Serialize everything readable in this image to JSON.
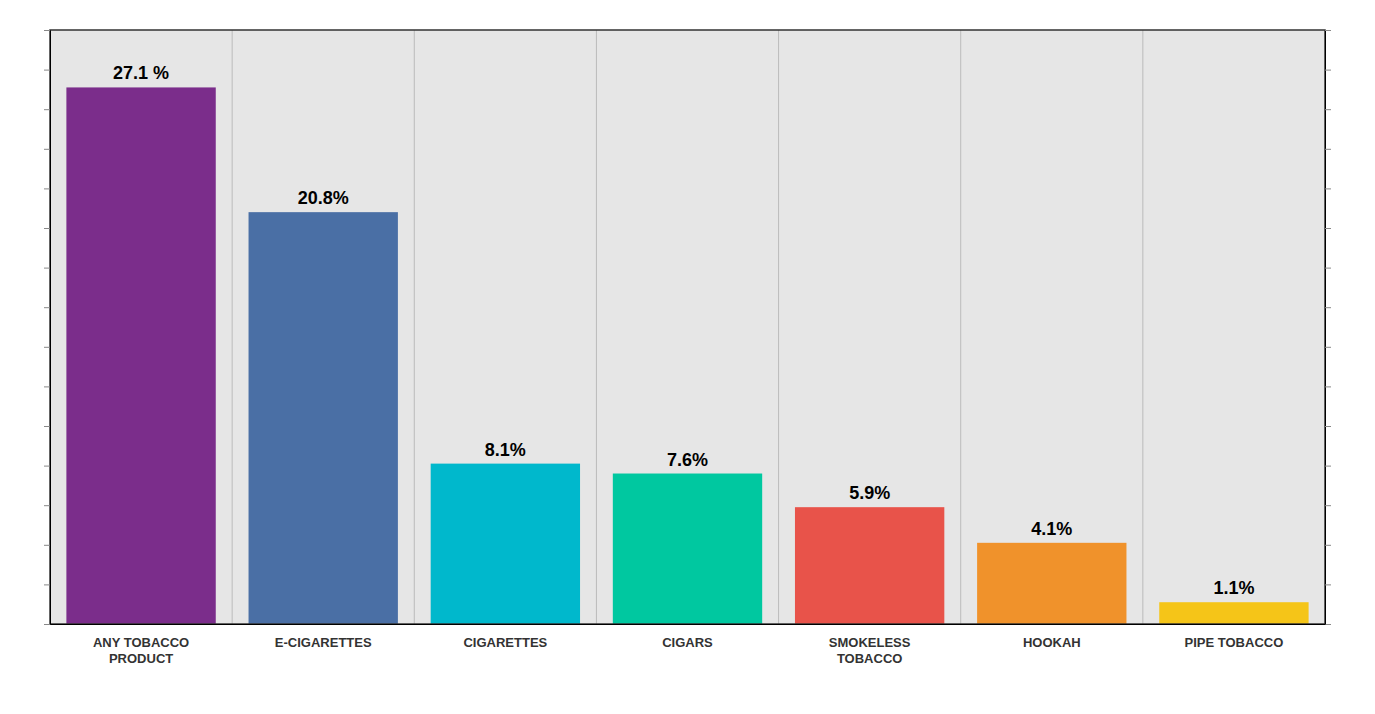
{
  "chart_data": {
    "type": "bar",
    "categories": [
      "ANY TOBACCO\nPRODUCT",
      "E-CIGARETTES",
      "CIGARETTES",
      "CIGARS",
      "SMOKELESS\nTOBACCO",
      "HOOKAH",
      "PIPE TOBACCO"
    ],
    "values": [
      27.1,
      20.8,
      8.1,
      7.6,
      5.9,
      4.1,
      1.1
    ],
    "value_labels": [
      "27.1 %",
      "20.8%",
      "8.1%",
      "7.6%",
      "5.9%",
      "4.1%",
      "1.1%"
    ],
    "data_labels": true,
    "colors": [
      "#7b2d8b",
      "#4a6fa5",
      "#00b8cc",
      "#00c8a0",
      "#e8534a",
      "#f0922b",
      "#f5c518"
    ],
    "ylim": [
      0,
      30
    ],
    "yticks": [
      0,
      2,
      4,
      6,
      8,
      10,
      12,
      14,
      16,
      18,
      20,
      22,
      24,
      26,
      28,
      30
    ],
    "tick_labels": "x"
  }
}
